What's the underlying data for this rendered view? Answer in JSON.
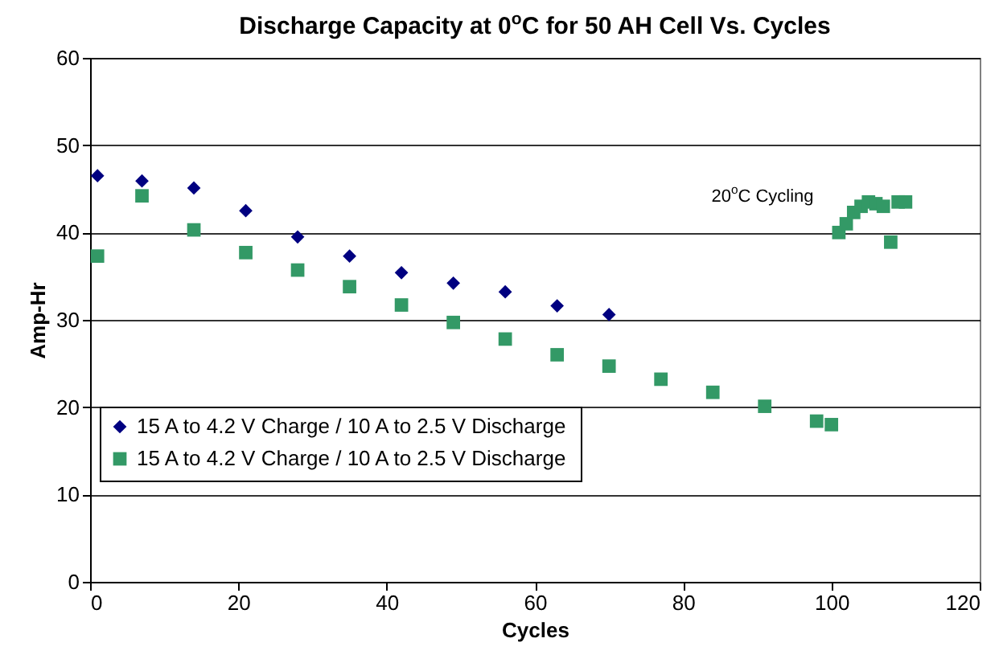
{
  "chart_data": {
    "type": "scatter",
    "title": "Discharge Capacity at 0$^{o}$C for 50 AH Cell Vs. Cycles",
    "xlabel": "Cycles",
    "ylabel": "Amp-Hr",
    "annotations": [
      "20$^{o}$C Cycling"
    ],
    "xlim": [
      0,
      120
    ],
    "xticks": [
      0,
      20,
      40,
      60,
      80,
      100,
      120
    ],
    "ylim": [
      0,
      60
    ],
    "yticks": [
      0,
      10,
      20,
      30,
      40,
      50,
      60
    ],
    "grid": "y",
    "legend": "bottom left",
    "series": [
      {
        "name": "15 A to 4.2 V Charge / 10 A to 2.5 V Discharge",
        "color": "#000080",
        "marker": "diamond",
        "x": [
          1,
          7,
          14,
          21,
          28,
          35,
          42,
          49,
          56,
          63,
          70
        ],
        "values": [
          46.5,
          45.9,
          45.1,
          42.5,
          39.5,
          37.3,
          35.4,
          34.2,
          33.2,
          31.6,
          30.6
        ]
      },
      {
        "name": "15 A to 4.2 V Charge / 10 A to 2.5 V Discharge",
        "color": "#339966",
        "marker": "square",
        "x": [
          1,
          7,
          14,
          21,
          28,
          35,
          42,
          49,
          56,
          63,
          70,
          77,
          84,
          91,
          98,
          100,
          101,
          102,
          103,
          104,
          105,
          106,
          107,
          108,
          109,
          110
        ],
        "values": [
          37.3,
          44.2,
          40.3,
          37.7,
          35.7,
          33.8,
          31.7,
          29.7,
          27.8,
          26.0,
          24.7,
          23.2,
          21.7,
          20.1,
          18.4,
          18.0,
          40.0,
          41.0,
          42.3,
          43.0,
          43.5,
          43.3,
          43.0,
          38.9,
          43.5,
          43.5
        ]
      }
    ]
  }
}
